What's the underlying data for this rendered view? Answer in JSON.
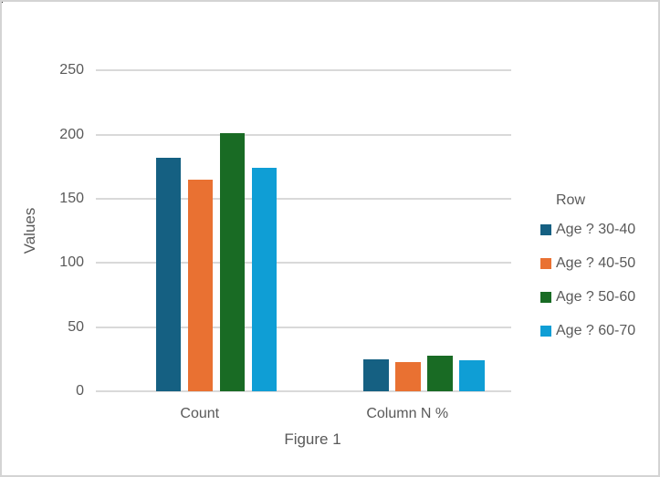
{
  "chart_data": {
    "type": "bar",
    "title": "",
    "xlabel": "Figure 1",
    "ylabel": "Values",
    "categories": [
      "Count",
      "Column N %"
    ],
    "series": [
      {
        "name": "Age ? 30-40",
        "color": "#156082",
        "values": [
          182,
          25.2
        ]
      },
      {
        "name": "Age ? 40-50",
        "color": "#E97132",
        "values": [
          165,
          22.9
        ]
      },
      {
        "name": "Age ? 50-60",
        "color": "#196B24",
        "values": [
          201,
          27.8
        ]
      },
      {
        "name": "Age ? 60-70",
        "color": "#0F9ED5",
        "values": [
          174,
          24.1
        ]
      }
    ],
    "ylim": [
      0,
      250
    ],
    "yticks": [
      0,
      50,
      100,
      150,
      200,
      250
    ],
    "grid": true,
    "legend_title": "Row",
    "legend_position": "right",
    "text_color": "#595959",
    "gridline_color": "#D9D9D9",
    "background": "#FFFFFF",
    "border_color": "#D4D4D4"
  }
}
